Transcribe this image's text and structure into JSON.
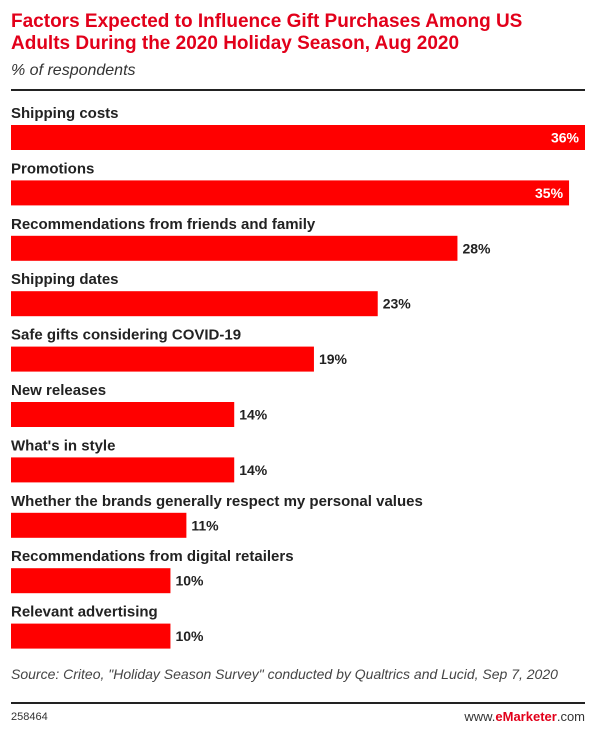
{
  "chart_data": {
    "type": "bar",
    "orientation": "horizontal",
    "title": "Factors Expected to Influence Gift Purchases Among US Adults During the 2020 Holiday Season, Aug 2020",
    "subtitle": "% of respondents",
    "categories": [
      "Shipping costs",
      "Promotions",
      "Recommendations from friends and family",
      "Shipping dates",
      "Safe gifts considering COVID-19",
      "New releases",
      "What's in style",
      "Whether the brands generally respect my personal values",
      "Recommendations from digital retailers",
      "Relevant advertising"
    ],
    "values": [
      36,
      35,
      28,
      23,
      19,
      14,
      14,
      11,
      10,
      10
    ],
    "value_labels": [
      "36%",
      "35%",
      "28%",
      "23%",
      "19%",
      "14%",
      "14%",
      "11%",
      "10%",
      "10%"
    ],
    "bar_color": "#ff0000",
    "grid": false
  },
  "footer": {
    "source": "Source: Criteo, \"Holiday Season Survey\" conducted by Qualtrics and Lucid, Sep 7, 2020",
    "chart_id": "258464",
    "brand_prefix": "www.",
    "brand_name": "eMarketer",
    "brand_suffix": ".com"
  }
}
